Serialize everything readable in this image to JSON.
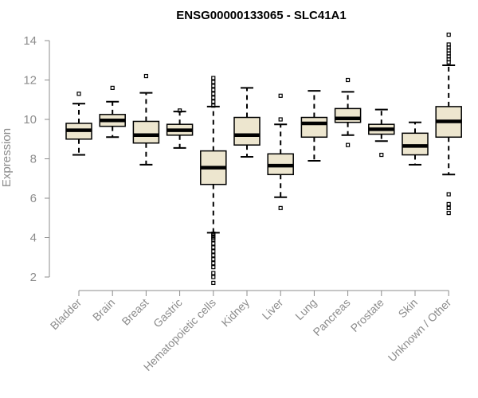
{
  "chart_data": {
    "type": "boxplot",
    "title": "ENSG00000133065 - SLC41A1",
    "xlabel": "",
    "ylabel": "Expression",
    "ylim": [
      1.5,
      14.5
    ],
    "yticks": [
      2,
      4,
      6,
      8,
      10,
      12,
      14
    ],
    "box_fill": "#ede6cf",
    "box_stroke": "#000000",
    "axis_color": "#8c8c8c",
    "categories": [
      "Bladder",
      "Brain",
      "Breast",
      "Gastric",
      "Hematopoietic cells",
      "Kidney",
      "Liver",
      "Lung",
      "Pancreas",
      "Prostate",
      "Skin",
      "Unknown / Other"
    ],
    "boxes": [
      {
        "name": "Bladder",
        "whisker_low": 8.2,
        "q1": 9.0,
        "median": 9.45,
        "q3": 9.8,
        "whisker_high": 10.8,
        "outliers": [
          11.3
        ]
      },
      {
        "name": "Brain",
        "whisker_low": 9.1,
        "q1": 9.65,
        "median": 9.95,
        "q3": 10.25,
        "whisker_high": 10.9,
        "outliers": [
          11.6
        ]
      },
      {
        "name": "Breast",
        "whisker_low": 7.7,
        "q1": 8.8,
        "median": 9.2,
        "q3": 9.9,
        "whisker_high": 11.35,
        "outliers": [
          12.2
        ]
      },
      {
        "name": "Gastric",
        "whisker_low": 8.55,
        "q1": 9.2,
        "median": 9.45,
        "q3": 9.75,
        "whisker_high": 10.4,
        "outliers": [
          10.45
        ]
      },
      {
        "name": "Hematopoietic cells",
        "whisker_low": 4.25,
        "q1": 6.7,
        "median": 7.55,
        "q3": 8.4,
        "whisker_high": 10.65,
        "outliers": [
          1.7,
          2.0,
          2.2,
          2.5,
          2.7,
          2.9,
          3.1,
          3.3,
          3.5,
          3.7,
          3.9,
          4.0,
          4.1,
          4.2,
          10.7,
          10.9,
          11.1,
          11.3,
          11.5,
          11.7,
          11.9,
          12.1
        ]
      },
      {
        "name": "Kidney",
        "whisker_low": 8.1,
        "q1": 8.7,
        "median": 9.2,
        "q3": 10.1,
        "whisker_high": 11.6,
        "outliers": []
      },
      {
        "name": "Liver",
        "whisker_low": 6.05,
        "q1": 7.2,
        "median": 7.65,
        "q3": 8.25,
        "whisker_high": 9.75,
        "outliers": [
          5.5,
          10.0,
          11.2
        ]
      },
      {
        "name": "Lung",
        "whisker_low": 7.9,
        "q1": 9.1,
        "median": 9.8,
        "q3": 10.1,
        "whisker_high": 11.45,
        "outliers": []
      },
      {
        "name": "Pancreas",
        "whisker_low": 9.2,
        "q1": 9.85,
        "median": 10.05,
        "q3": 10.55,
        "whisker_high": 11.4,
        "outliers": [
          8.7,
          12.0
        ]
      },
      {
        "name": "Prostate",
        "whisker_low": 8.9,
        "q1": 9.25,
        "median": 9.5,
        "q3": 9.75,
        "whisker_high": 10.5,
        "outliers": [
          8.2
        ]
      },
      {
        "name": "Skin",
        "whisker_low": 7.7,
        "q1": 8.2,
        "median": 8.65,
        "q3": 9.3,
        "whisker_high": 9.85,
        "outliers": []
      },
      {
        "name": "Unknown / Other",
        "whisker_low": 7.2,
        "q1": 9.1,
        "median": 9.9,
        "q3": 10.65,
        "whisker_high": 12.75,
        "outliers": [
          5.25,
          5.5,
          5.7,
          6.2,
          12.9,
          13.05,
          13.2,
          13.35,
          13.5,
          13.65,
          13.8,
          14.3
        ]
      }
    ]
  }
}
